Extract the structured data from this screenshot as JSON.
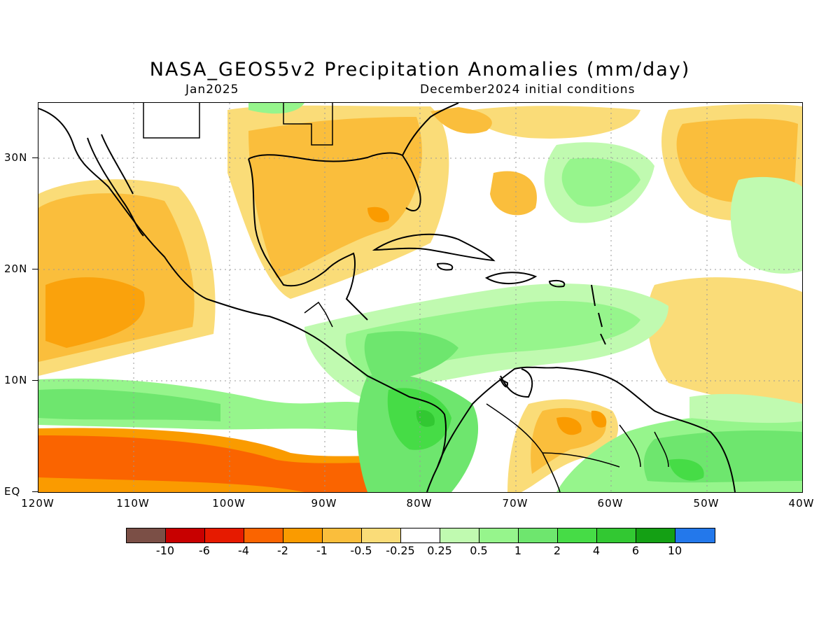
{
  "header": {
    "title": "NASA_GEOS5v2 Precipitation Anomalies (mm/day)",
    "month": "Jan2025",
    "init": "December2024 initial conditions"
  },
  "axes": {
    "lat_labels": [
      "30N",
      "20N",
      "10N",
      "EQ"
    ],
    "lon_labels": [
      "120W",
      "110W",
      "100W",
      "90W",
      "80W",
      "70W",
      "60W",
      "50W",
      "40W"
    ]
  },
  "colorbar": {
    "colors": [
      "#7b4f46",
      "#c80000",
      "#e61a00",
      "#fa6400",
      "#fa9b00",
      "#fabe3c",
      "#fadc78",
      "#ffffff",
      "#c0fab0",
      "#96f58c",
      "#6ee66e",
      "#46dc46",
      "#32c832",
      "#14a014",
      "#2378eb"
    ],
    "labels": [
      "-10",
      "-6",
      "-4",
      "-2",
      "-1",
      "-0.5",
      "-0.25",
      "0.25",
      "0.5",
      "1",
      "2",
      "4",
      "6",
      "10"
    ]
  },
  "map": {
    "region": "Central America / Caribbean",
    "lon_range": [
      -120,
      -40
    ],
    "lat_range": [
      0,
      35
    ]
  }
}
